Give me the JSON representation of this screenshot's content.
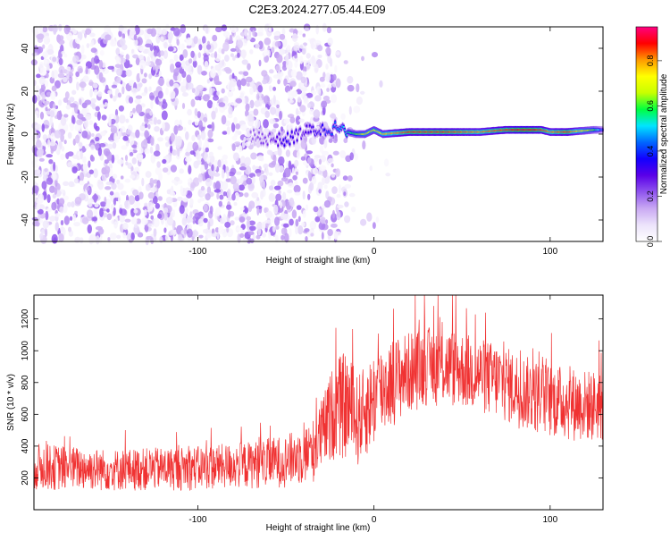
{
  "title": "C2E3.2024.277.05.44.E09",
  "chart_data": [
    {
      "type": "heatmap",
      "xlabel": "Height of straight line (km)",
      "ylabel": "Frequency (Hz)",
      "xlim": [
        -193,
        130
      ],
      "ylim": [
        -50,
        50
      ],
      "x_ticks": [
        -100,
        0,
        100
      ],
      "x_tick_labels": [
        "-100",
        "0",
        "100"
      ],
      "y_ticks": [
        -40,
        -20,
        0,
        20,
        40
      ],
      "y_tick_labels": [
        "-40",
        "-20",
        "0",
        "20",
        "40"
      ],
      "colorbar": {
        "label": "Normalized spectral amplitude",
        "range": [
          0,
          0.95
        ],
        "ticks": [
          0,
          0.2,
          0.4,
          0.6,
          0.8
        ],
        "tick_labels": [
          "0.0",
          "0.2",
          "0.4",
          "0.6",
          "0.8"
        ],
        "colors": [
          "#ffffff",
          "#ece3fb",
          "#c9a9f3",
          "#8f54ee",
          "#5a00e8",
          "#1200ff",
          "#0066ff",
          "#00e5ff",
          "#00ff40",
          "#c8ff00",
          "#ffff00",
          "#ff9900",
          "#ff0000",
          "#ff0080"
        ]
      },
      "noise_region_x": [
        -193,
        -20
      ],
      "signal_track": {
        "x": [
          -70,
          -60,
          -50,
          -40,
          -30,
          -22,
          -15,
          -10,
          -5,
          0,
          5,
          20,
          40,
          60,
          75,
          85,
          95,
          100,
          110,
          125,
          130
        ],
        "freq": [
          -1,
          -2,
          -3,
          1,
          2,
          3,
          1,
          0,
          0,
          2,
          0,
          1,
          1,
          1,
          2,
          2,
          2,
          1,
          1,
          2,
          2
        ],
        "amplitude": [
          0.2,
          0.25,
          0.35,
          0.3,
          0.35,
          0.45,
          0.55,
          0.6,
          0.7,
          0.7,
          0.75,
          0.85,
          0.85,
          0.8,
          0.85,
          0.9,
          0.85,
          0.8,
          0.85,
          0.6,
          0.4
        ]
      },
      "grid": false
    },
    {
      "type": "line",
      "xlabel": "Height of straight line (km)",
      "ylabel": "SNR (10 * v/v)",
      "xlim": [
        -193,
        130
      ],
      "ylim": [
        0,
        1350
      ],
      "x_ticks": [
        -100,
        0,
        100
      ],
      "x_tick_labels": [
        "-100",
        "0",
        "100"
      ],
      "y_ticks": [
        200,
        400,
        600,
        800,
        1000,
        1200
      ],
      "y_tick_labels": [
        "200",
        "400",
        "600",
        "800",
        "1000",
        "1200"
      ],
      "color": "#f03232",
      "envelope": {
        "x": [
          -193,
          -150,
          -100,
          -70,
          -50,
          -35,
          -28,
          -22,
          -15,
          -10,
          -5,
          0,
          5,
          10,
          20,
          30,
          40,
          50,
          60,
          70,
          80,
          90,
          100,
          110,
          120,
          130
        ],
        "low": [
          120,
          115,
          120,
          130,
          140,
          160,
          250,
          320,
          300,
          250,
          320,
          380,
          450,
          520,
          600,
          650,
          640,
          630,
          600,
          560,
          520,
          480,
          450,
          430,
          420,
          420
        ],
        "high": [
          420,
          380,
          400,
          430,
          470,
          560,
          750,
          950,
          1000,
          850,
          900,
          1000,
          1050,
          1080,
          1120,
          1150,
          1150,
          1120,
          1080,
          1050,
          1000,
          950,
          920,
          900,
          880,
          880
        ]
      },
      "grid": false
    }
  ]
}
